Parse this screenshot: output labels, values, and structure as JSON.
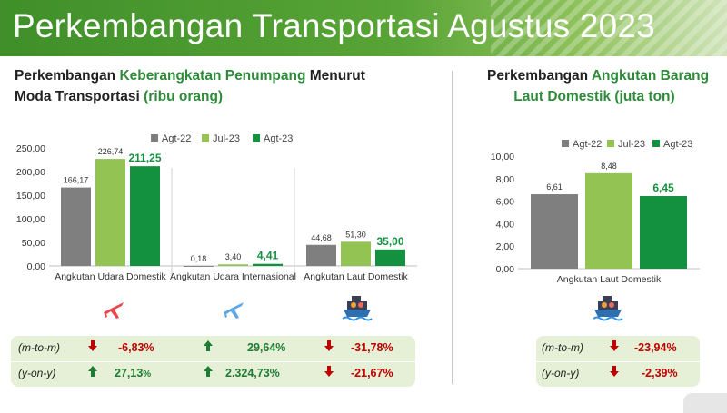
{
  "header": {
    "title": "Perkembangan Transportasi Agustus 2023"
  },
  "left_section": {
    "title_part1": "Perkembangan ",
    "title_green1": "Keberangkatan Penumpang",
    "title_part2": " Menurut",
    "title_line2": "Moda Transportasi ",
    "title_green2": "(ribu orang)"
  },
  "right_section": {
    "title_part1": "Perkembangan ",
    "title_green1": "Angkutan Barang",
    "title_green2": "Laut Domestik (juta ton)"
  },
  "colors": {
    "agt22": "#7f7f7f",
    "jul23": "#92c353",
    "agt23": "#14913f",
    "red": "#c00000",
    "green": "#1e7b34",
    "box": "#e5f0d6"
  },
  "chart_data": [
    {
      "type": "bar",
      "categories": [
        "Angkutan Udara Domestik",
        "Angkutan Udara Internasional",
        "Angkutan Laut Domestik"
      ],
      "series": [
        {
          "name": "Agt-22",
          "values": [
            166.17,
            0.18,
            44.68
          ],
          "labels": [
            "166,17",
            "0,18",
            "44,68"
          ]
        },
        {
          "name": "Jul-23",
          "values": [
            226.74,
            3.4,
            51.3
          ],
          "labels": [
            "226,74",
            "3,40",
            "51,30"
          ]
        },
        {
          "name": "Agt-23",
          "values": [
            211.25,
            4.41,
            35.0
          ],
          "labels": [
            "211,25",
            "4,41",
            "35,00"
          ]
        }
      ],
      "ylim": [
        0,
        250
      ],
      "yticks": [
        "0,00",
        "50,00",
        "100,00",
        "150,00",
        "200,00",
        "250,00"
      ],
      "legend": "top",
      "grid": false
    },
    {
      "type": "bar",
      "categories": [
        "Angkutan Laut Domestik"
      ],
      "series": [
        {
          "name": "Agt-22",
          "values": [
            6.61
          ],
          "labels": [
            "6,61"
          ]
        },
        {
          "name": "Jul-23",
          "values": [
            8.48
          ],
          "labels": [
            "8,48"
          ]
        },
        {
          "name": "Agt-23",
          "values": [
            6.45
          ],
          "labels": [
            "6,45"
          ]
        }
      ],
      "ylim": [
        0,
        10
      ],
      "yticks": [
        "0,00",
        "2,00",
        "4,00",
        "6,00",
        "8,00",
        "10,00"
      ],
      "legend": "top",
      "grid": false
    }
  ],
  "icons": {
    "air_domestic": "airplane-icon",
    "air_international": "airplane-icon",
    "sea_domestic": "ship-icon"
  },
  "metrics_left": {
    "mtm_label": "(m-to-m)",
    "yoy_label": "(y-on-y)",
    "mtm": [
      {
        "value": "-6,83%",
        "direction": "down"
      },
      {
        "value": "29,64%",
        "direction": "up"
      },
      {
        "value": "-31,78%",
        "direction": "down"
      }
    ],
    "yoy": [
      {
        "value": "27,13",
        "suffix": "%",
        "direction": "up"
      },
      {
        "value": "2.324,73%",
        "direction": "up"
      },
      {
        "value": "-21,67%",
        "direction": "down"
      }
    ]
  },
  "metrics_right": {
    "mtm_label": "(m-to-m)",
    "yoy_label": "(y-on-y)",
    "mtm": {
      "value": "-23,94%",
      "direction": "down"
    },
    "yoy": {
      "value": "-2,39%",
      "direction": "down"
    }
  }
}
